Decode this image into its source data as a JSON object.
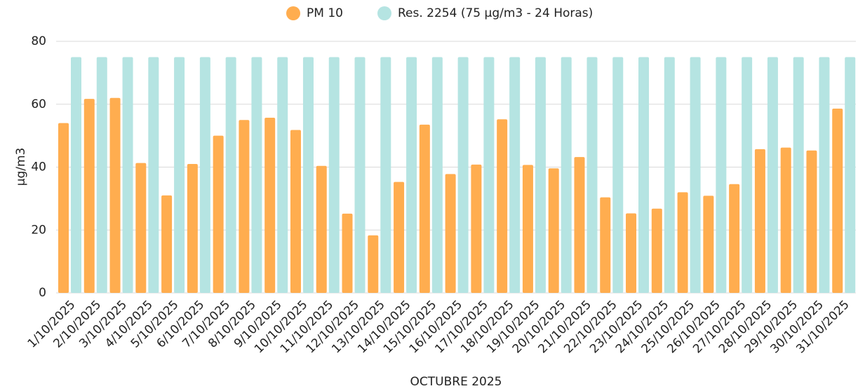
{
  "chart_data": {
    "type": "bar",
    "x_label": "OCTUBRE 2025",
    "y_label": "µg/m3",
    "categories": [
      "1/10/2025",
      "2/10/2025",
      "3/10/2025",
      "4/10/2025",
      "5/10/2025",
      "6/10/2025",
      "7/10/2025",
      "8/10/2025",
      "9/10/2025",
      "10/10/2025",
      "11/10/2025",
      "12/10/2025",
      "13/10/2025",
      "14/10/2025",
      "15/10/2025",
      "16/10/2025",
      "17/10/2025",
      "18/10/2025",
      "19/10/2025",
      "20/10/2025",
      "21/10/2025",
      "22/10/2025",
      "23/10/2025",
      "24/10/2025",
      "25/10/2025",
      "26/10/2025",
      "27/10/2025",
      "28/10/2025",
      "29/10/2025",
      "30/10/2025",
      "31/10/2025"
    ],
    "series": [
      {
        "name": "PM 10",
        "color": "#ffad4f",
        "values": [
          54,
          61.7,
          62,
          41.3,
          31,
          41,
          50,
          55,
          55.7,
          51.8,
          40.4,
          25.2,
          18.3,
          35.3,
          53.5,
          37.8,
          40.8,
          55.2,
          40.7,
          39.6,
          43.2,
          30.4,
          25.3,
          26.8,
          32,
          30.9,
          34.6,
          45.7,
          46.2,
          45.3,
          58.6
        ]
      },
      {
        "name": "Res. 2254 (75 µg/m3 - 24 Horas)",
        "color": "#b5e4e2",
        "values": [
          75,
          75,
          75,
          75,
          75,
          75,
          75,
          75,
          75,
          75,
          75,
          75,
          75,
          75,
          75,
          75,
          75,
          75,
          75,
          75,
          75,
          75,
          75,
          75,
          75,
          75,
          75,
          75,
          75,
          75,
          75
        ]
      }
    ],
    "ylim": [
      0,
      80
    ],
    "yticks": [
      0,
      20,
      40,
      60,
      80
    ],
    "grid": true,
    "legend": "top"
  }
}
